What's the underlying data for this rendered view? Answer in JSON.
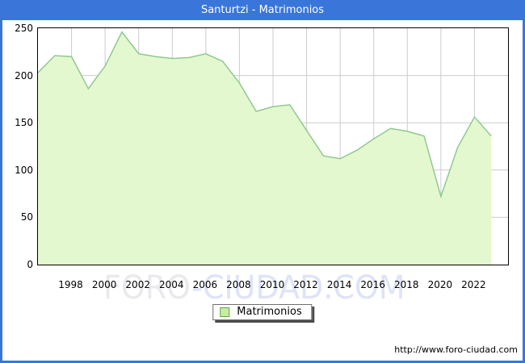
{
  "window": {
    "title": "Santurtzi - Matrimonios"
  },
  "colors": {
    "titlebar_bg": "#3a76da",
    "plot_border": "#000000",
    "gridline": "#cccccc",
    "area_fill": "#e4f8cf",
    "area_line": "#8fc98f",
    "legend_swatch_fill": "#c3ef9e",
    "legend_swatch_border": "#6f9c54",
    "watermark_foro": "#eaeaee",
    "watermark_ciudad": "#dee3f8"
  },
  "legend": {
    "label": "Matrimonios"
  },
  "watermark": {
    "part1": "FORO",
    "part2": "-CIUDAD.COM"
  },
  "footer": {
    "url": "http://www.foro-ciudad.com"
  },
  "chart_data": {
    "type": "area",
    "title": "Santurtzi - Matrimonios",
    "series_name": "Matrimonios",
    "x": [
      1996,
      1997,
      1998,
      1999,
      2000,
      2001,
      2002,
      2003,
      2004,
      2005,
      2006,
      2007,
      2008,
      2009,
      2010,
      2011,
      2012,
      2013,
      2014,
      2015,
      2016,
      2017,
      2018,
      2019,
      2020,
      2021,
      2022,
      2023
    ],
    "values": [
      203,
      221,
      220,
      186,
      210,
      246,
      223,
      220,
      218,
      219,
      223,
      215,
      192,
      162,
      167,
      169,
      142,
      115,
      112,
      121,
      133,
      144,
      141,
      136,
      72,
      124,
      156,
      136
    ],
    "xlim": [
      1996,
      2024
    ],
    "ylim": [
      0,
      250
    ],
    "x_ticks": [
      1998,
      2000,
      2002,
      2004,
      2006,
      2008,
      2010,
      2012,
      2014,
      2016,
      2018,
      2020,
      2022
    ],
    "y_ticks": [
      0,
      50,
      100,
      150,
      200,
      250
    ],
    "grid": true,
    "legend_position": "bottom",
    "xlabel": "",
    "ylabel": ""
  }
}
